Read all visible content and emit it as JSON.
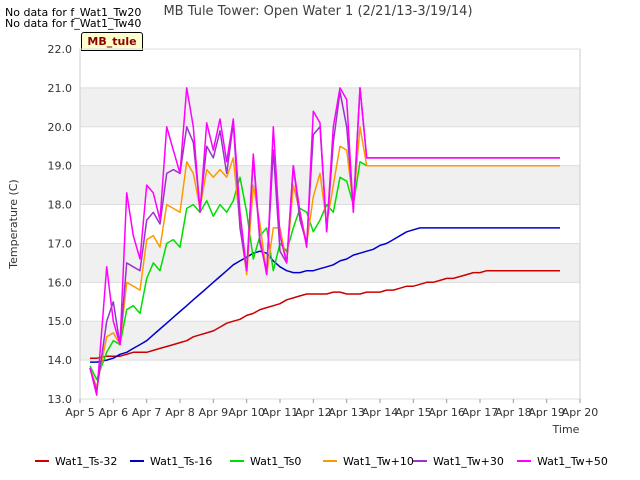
{
  "notes": [
    "No data for f_Wat1_Tw20",
    "No data for f_Wat1_Tw40"
  ],
  "site_tag": "MB_tule",
  "chart_data": {
    "type": "line",
    "title": "MB Tule Tower: Open Water 1 (2/21/13-3/19/14)",
    "xlabel": "Time",
    "ylabel": "Temperature (C)",
    "x_tick_labels": [
      "Apr 5",
      "Apr 6",
      "Apr 7",
      "Apr 8",
      "Apr 9",
      "Apr 10",
      "Apr 11",
      "Apr 12",
      "Apr 13",
      "Apr 14",
      "Apr 15",
      "Apr 16",
      "Apr 17",
      "Apr 18",
      "Apr 19",
      "Apr 20"
    ],
    "y_tick_labels": [
      "13.0",
      "14.0",
      "15.0",
      "16.0",
      "17.0",
      "18.0",
      "19.0",
      "20.0",
      "21.0",
      "22.0"
    ],
    "x_day_offset_range": [
      0,
      15
    ],
    "ylim": [
      13.0,
      22.0
    ],
    "banded_background": true,
    "legend_position": "bottom",
    "x": [
      0.3,
      0.5,
      0.8,
      1.0,
      1.2,
      1.4,
      1.6,
      1.8,
      2.0,
      2.2,
      2.4,
      2.6,
      2.8,
      3.0,
      3.2,
      3.4,
      3.6,
      3.8,
      4.0,
      4.2,
      4.4,
      4.6,
      4.8,
      5.0,
      5.2,
      5.4,
      5.6,
      5.8,
      6.0,
      6.2,
      6.4,
      6.6,
      6.8,
      7.0,
      7.2,
      7.4,
      7.6,
      7.8,
      8.0,
      8.2,
      8.4,
      8.6,
      8.8,
      9.0,
      9.2,
      9.4,
      9.6,
      9.8,
      10.0,
      10.2,
      10.4,
      10.6,
      10.8,
      11.0,
      11.2,
      11.4,
      11.6,
      11.8,
      12.0,
      12.2,
      12.4,
      12.6,
      12.8,
      13.0,
      13.2,
      13.4,
      13.6,
      13.8,
      14.0,
      14.2,
      14.4
    ],
    "series": [
      {
        "name": "Wat1_Ts-32",
        "color": "#cc0000",
        "values": [
          14.05,
          14.05,
          14.1,
          14.1,
          14.1,
          14.15,
          14.2,
          14.2,
          14.2,
          14.25,
          14.3,
          14.35,
          14.4,
          14.45,
          14.5,
          14.6,
          14.65,
          14.7,
          14.75,
          14.85,
          14.95,
          15.0,
          15.05,
          15.15,
          15.2,
          15.3,
          15.35,
          15.4,
          15.45,
          15.55,
          15.6,
          15.65,
          15.7,
          15.7,
          15.7,
          15.7,
          15.75,
          15.75,
          15.7,
          15.7,
          15.7,
          15.75,
          15.75,
          15.75,
          15.8,
          15.8,
          15.85,
          15.9,
          15.9,
          15.95,
          16.0,
          16.0,
          16.05,
          16.1,
          16.1,
          16.15,
          16.2,
          16.25,
          16.25,
          16.3,
          16.3,
          16.3,
          16.3,
          16.3,
          16.3,
          16.3,
          16.3,
          16.3,
          16.3,
          16.3,
          16.3
        ]
      },
      {
        "name": "Wat1_Ts-16",
        "color": "#0000cc",
        "values": [
          13.95,
          13.95,
          14.0,
          14.05,
          14.15,
          14.2,
          14.3,
          14.4,
          14.5,
          14.65,
          14.8,
          14.95,
          15.1,
          15.25,
          15.4,
          15.55,
          15.7,
          15.85,
          16.0,
          16.15,
          16.3,
          16.45,
          16.55,
          16.65,
          16.75,
          16.8,
          16.75,
          16.55,
          16.4,
          16.3,
          16.25,
          16.25,
          16.3,
          16.3,
          16.35,
          16.4,
          16.45,
          16.55,
          16.6,
          16.7,
          16.75,
          16.8,
          16.85,
          16.95,
          17.0,
          17.1,
          17.2,
          17.3,
          17.35,
          17.4,
          17.4,
          17.4,
          17.4,
          17.4,
          17.4,
          17.4,
          17.4,
          17.4,
          17.4,
          17.4,
          17.4,
          17.4,
          17.4,
          17.4,
          17.4,
          17.4,
          17.4,
          17.4,
          17.4,
          17.4,
          17.4
        ]
      },
      {
        "name": "Wat1_Ts0",
        "color": "#00dd00",
        "values": [
          13.85,
          13.5,
          14.2,
          14.5,
          14.4,
          15.3,
          15.4,
          15.2,
          16.1,
          16.5,
          16.3,
          17.0,
          17.1,
          16.9,
          17.9,
          18.0,
          17.8,
          18.1,
          17.7,
          18.0,
          17.8,
          18.1,
          18.7,
          17.8,
          16.6,
          17.2,
          17.4,
          16.3,
          17.0,
          16.8,
          17.4,
          17.9,
          17.8,
          17.3,
          17.6,
          18.0,
          17.8,
          18.7,
          18.6,
          18.0,
          19.1,
          19.0,
          19.0,
          19.0,
          19.0,
          19.0,
          19.0,
          19.0,
          19.0,
          19.0,
          19.0,
          19.0,
          19.0,
          19.0,
          19.0,
          19.0,
          19.0,
          19.0,
          19.0,
          19.0,
          19.0,
          19.0,
          19.0,
          19.0,
          19.0,
          19.0,
          19.0,
          19.0,
          19.0,
          19.0,
          19.0
        ]
      },
      {
        "name": "Wat1_Tw+10",
        "color": "#ff9900",
        "values": [
          13.8,
          13.3,
          14.6,
          14.7,
          14.4,
          16.0,
          15.9,
          15.8,
          17.1,
          17.2,
          16.9,
          18.0,
          17.9,
          17.8,
          19.1,
          18.8,
          17.9,
          18.9,
          18.7,
          18.9,
          18.7,
          19.2,
          17.5,
          16.2,
          18.5,
          17.5,
          16.2,
          17.4,
          17.4,
          16.5,
          18.5,
          17.8,
          17.0,
          18.2,
          18.8,
          17.5,
          18.5,
          19.5,
          19.4,
          18.0,
          20.0,
          19.0,
          19.0,
          19.0,
          19.0,
          19.0,
          19.0,
          19.0,
          19.0,
          19.0,
          19.0,
          19.0,
          19.0,
          19.0,
          19.0,
          19.0,
          19.0,
          19.0,
          19.0,
          19.0,
          19.0,
          19.0,
          19.0,
          19.0,
          19.0,
          19.0,
          19.0,
          19.0,
          19.0,
          19.0,
          19.0
        ]
      },
      {
        "name": "Wat1_Tw+30",
        "color": "#9933cc",
        "values": [
          13.8,
          13.2,
          15.0,
          15.5,
          14.4,
          16.5,
          16.4,
          16.3,
          17.6,
          17.8,
          17.5,
          18.8,
          18.9,
          18.8,
          20.0,
          19.6,
          17.9,
          19.5,
          19.2,
          19.9,
          18.8,
          20.1,
          17.4,
          16.3,
          19.2,
          17.0,
          16.3,
          19.4,
          16.8,
          16.5,
          19.0,
          17.6,
          17.0,
          19.8,
          20.0,
          17.3,
          19.6,
          20.9,
          20.0,
          17.9,
          21.0,
          19.2,
          19.2,
          19.2,
          19.2,
          19.2,
          19.2,
          19.2,
          19.2,
          19.2,
          19.2,
          19.2,
          19.2,
          19.2,
          19.2,
          19.2,
          19.2,
          19.2,
          19.2,
          19.2,
          19.2,
          19.2,
          19.2,
          19.2,
          19.2,
          19.2,
          19.2,
          19.2,
          19.2,
          19.2,
          19.2
        ]
      },
      {
        "name": "Wat1_Tw+50",
        "color": "#ff00ff",
        "values": [
          13.8,
          13.1,
          16.4,
          15.0,
          14.4,
          18.3,
          17.2,
          16.6,
          18.5,
          18.3,
          17.6,
          20.0,
          19.4,
          18.8,
          21.0,
          20.0,
          17.8,
          20.1,
          19.4,
          20.2,
          19.1,
          20.2,
          17.8,
          16.3,
          19.3,
          17.1,
          16.2,
          20.0,
          17.2,
          16.5,
          19.0,
          17.8,
          16.9,
          20.4,
          20.1,
          17.3,
          20.0,
          21.0,
          20.7,
          17.8,
          21.0,
          19.2,
          19.2,
          19.2,
          19.2,
          19.2,
          19.2,
          19.2,
          19.2,
          19.2,
          19.2,
          19.2,
          19.2,
          19.2,
          19.2,
          19.2,
          19.2,
          19.2,
          19.2,
          19.2,
          19.2,
          19.2,
          19.2,
          19.2,
          19.2,
          19.2,
          19.2,
          19.2,
          19.2,
          19.2,
          19.2
        ]
      }
    ]
  }
}
